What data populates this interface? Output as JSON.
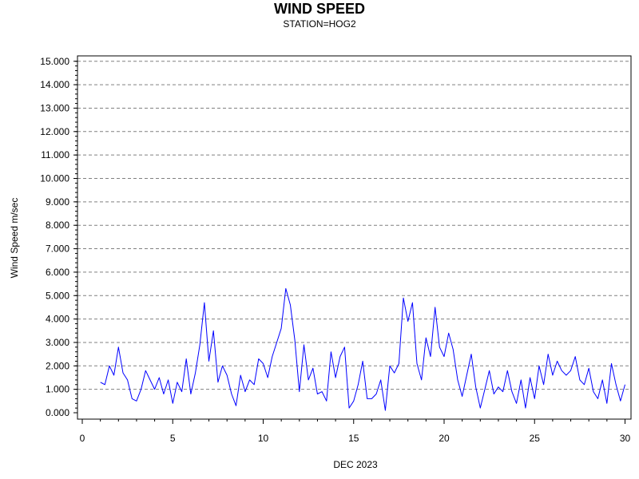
{
  "chart_data": {
    "type": "line",
    "title": "WIND SPEED",
    "subtitle": "STATION=HOG2",
    "xlabel": "DEC 2023",
    "ylabel": "Wind Speed m/sec",
    "xlim": [
      0,
      30
    ],
    "ylim": [
      0,
      15
    ],
    "x_ticks": [
      "0",
      "5",
      "10",
      "15",
      "20",
      "25",
      "30"
    ],
    "y_ticks": [
      "0.000",
      "1.000",
      "2.000",
      "3.000",
      "4.000",
      "5.000",
      "6.000",
      "7.000",
      "8.000",
      "9.000",
      "10.000",
      "11.000",
      "12.000",
      "13.000",
      "14.000",
      "15.000"
    ],
    "grid": {
      "y": "dashed",
      "x": "none"
    },
    "line_color": "#0000ff",
    "series": [
      {
        "x": [
          1.0,
          1.25,
          1.5,
          1.75,
          2.0,
          2.25,
          2.5,
          2.75,
          3.0,
          3.25,
          3.5,
          3.75,
          4.0,
          4.25,
          4.5,
          4.75,
          5.0,
          5.25,
          5.5,
          5.75,
          6.0,
          6.25,
          6.5,
          6.75,
          7.0,
          7.25,
          7.5,
          7.75,
          8.0,
          8.25,
          8.5,
          8.75,
          9.0,
          9.25,
          9.5,
          9.75,
          10.0,
          10.25,
          10.5,
          10.75,
          11.0,
          11.25,
          11.5,
          11.75,
          12.0,
          12.25,
          12.5,
          12.75,
          13.0,
          13.25,
          13.5,
          13.75,
          14.0,
          14.25,
          14.5,
          14.75,
          15.0,
          15.25,
          15.5,
          15.75,
          16.0,
          16.25,
          16.5,
          16.75,
          17.0,
          17.25,
          17.5,
          17.75,
          18.0,
          18.25,
          18.5,
          18.75,
          19.0,
          19.25,
          19.5,
          19.75,
          20.0,
          20.25,
          20.5,
          20.75,
          21.0,
          21.25,
          21.5,
          21.75,
          22.0,
          22.25,
          22.5,
          22.75,
          23.0,
          23.25,
          23.5,
          23.75,
          24.0,
          24.25,
          24.5,
          24.75,
          25.0,
          25.25,
          25.5,
          25.75,
          26.0,
          26.25,
          26.5,
          26.75,
          27.0,
          27.25,
          27.5,
          27.75,
          28.0,
          28.25,
          28.5,
          28.75,
          29.0,
          29.25,
          29.5,
          29.75,
          30.0
        ],
        "y": [
          1.3,
          1.2,
          2.0,
          1.6,
          2.8,
          1.7,
          1.4,
          0.6,
          0.5,
          1.0,
          1.8,
          1.4,
          1.0,
          1.5,
          0.8,
          1.4,
          0.4,
          1.3,
          0.9,
          2.3,
          0.8,
          1.7,
          2.9,
          4.7,
          2.2,
          3.5,
          1.3,
          2.0,
          1.6,
          0.8,
          0.3,
          1.6,
          0.9,
          1.4,
          1.2,
          2.3,
          2.1,
          1.5,
          2.4,
          3.0,
          3.6,
          5.3,
          4.6,
          3.1,
          0.9,
          2.9,
          1.4,
          1.9,
          0.8,
          0.9,
          0.5,
          2.6,
          1.5,
          2.4,
          2.8,
          0.2,
          0.5,
          1.2,
          2.2,
          0.6,
          0.6,
          0.8,
          1.4,
          0.1,
          2.0,
          1.7,
          2.1,
          4.9,
          3.9,
          4.7,
          2.1,
          1.4,
          3.2,
          2.4,
          4.5,
          2.8,
          2.4,
          3.4,
          2.7,
          1.4,
          0.7,
          1.6,
          2.5,
          1.1,
          0.2,
          1.0,
          1.8,
          0.8,
          1.1,
          0.9,
          1.8,
          0.9,
          0.4,
          1.4,
          0.2,
          1.5,
          0.6,
          2.0,
          1.2,
          2.5,
          1.6,
          2.2,
          1.8,
          1.6,
          1.8,
          2.4,
          1.4,
          1.2,
          1.9,
          0.9,
          0.6,
          1.4,
          0.4,
          2.1,
          1.2,
          0.5,
          1.2
        ]
      }
    ]
  }
}
